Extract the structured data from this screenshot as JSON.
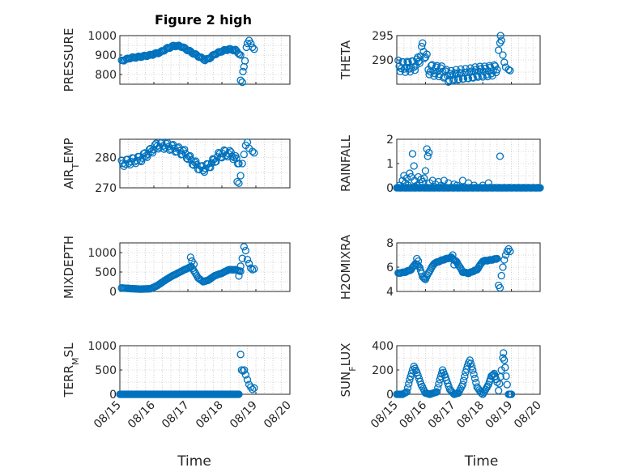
{
  "figure": {
    "title": "Figure 2 high",
    "marker_color": "#0072BD"
  },
  "chart_data": [
    {
      "type": "scatter",
      "id": "pressure",
      "title": "Figure 2 high",
      "ylabel": {
        "text": "PRESSURE"
      },
      "ylim": [
        750,
        1000
      ],
      "yticks": [
        "800",
        "900",
        "1000"
      ],
      "xlim": [
        0,
        5
      ],
      "xticks": [
        "08/15",
        "08/16",
        "08/17",
        "08/18",
        "08/19",
        "08/20"
      ],
      "xlabel": "",
      "grid": true,
      "keyframes": [
        [
          0.05,
          870
        ],
        [
          0.3,
          885
        ],
        [
          0.55,
          890
        ],
        [
          0.9,
          900
        ],
        [
          1.2,
          915
        ],
        [
          1.4,
          935
        ],
        [
          1.6,
          948
        ],
        [
          1.8,
          945
        ],
        [
          2.05,
          920
        ],
        [
          2.3,
          895
        ],
        [
          2.5,
          875
        ],
        [
          2.6,
          880
        ],
        [
          2.8,
          905
        ],
        [
          3.0,
          920
        ],
        [
          3.2,
          930
        ],
        [
          3.4,
          925
        ],
        [
          3.55,
          900
        ]
      ],
      "extra": [
        [
          3.55,
          770
        ],
        [
          3.6,
          760
        ],
        [
          3.62,
          815
        ],
        [
          3.65,
          840
        ],
        [
          3.68,
          870
        ],
        [
          3.72,
          940
        ],
        [
          3.75,
          960
        ],
        [
          3.8,
          975
        ],
        [
          3.85,
          960
        ],
        [
          3.9,
          940
        ],
        [
          3.95,
          930
        ]
      ]
    },
    {
      "type": "scatter",
      "id": "theta",
      "ylabel": {
        "text": "THETA"
      },
      "ylim": [
        285,
        295
      ],
      "yticks": [
        "290",
        "295"
      ],
      "xlim": [
        0,
        5
      ],
      "xticks": [
        "08/15",
        "08/16",
        "08/17",
        "08/18",
        "08/19",
        "08/20"
      ],
      "xlabel": "",
      "grid": true,
      "keyframes": [
        [
          0.05,
          288.8
        ],
        [
          0.3,
          288.6
        ],
        [
          0.5,
          288.7
        ],
        [
          0.7,
          289.2
        ],
        [
          0.8,
          290.5
        ],
        [
          0.9,
          292.5
        ],
        [
          1.0,
          291
        ],
        [
          1.05,
          290
        ],
        [
          1.1,
          288.2
        ],
        [
          1.3,
          287.8
        ],
        [
          1.6,
          287.6
        ],
        [
          1.8,
          286.5
        ],
        [
          2.0,
          286.8
        ],
        [
          2.3,
          287
        ],
        [
          2.6,
          287.2
        ],
        [
          2.8,
          287.5
        ],
        [
          3.1,
          287.6
        ],
        [
          3.3,
          287.8
        ],
        [
          3.5,
          288
        ]
      ],
      "extra": [
        [
          3.55,
          292
        ],
        [
          3.6,
          293.5
        ],
        [
          3.62,
          295
        ],
        [
          3.65,
          294
        ],
        [
          3.7,
          291
        ],
        [
          3.75,
          289.5
        ],
        [
          3.8,
          288.5
        ],
        [
          3.9,
          288
        ],
        [
          3.95,
          287.8
        ]
      ]
    },
    {
      "type": "scatter",
      "id": "air_temp",
      "ylabel": {
        "text": "AIR",
        "sub": "T",
        "rest": "EMP"
      },
      "ylim": [
        270,
        286
      ],
      "yticks": [
        "270",
        "280"
      ],
      "xlim": [
        0,
        5
      ],
      "xticks": [
        "08/15",
        "08/16",
        "08/17",
        "08/18",
        "08/19",
        "08/20"
      ],
      "xlabel": "",
      "grid": true,
      "keyframes": [
        [
          0.05,
          278
        ],
        [
          0.3,
          278.7
        ],
        [
          0.6,
          279.5
        ],
        [
          0.9,
          282
        ],
        [
          1.1,
          284
        ],
        [
          1.4,
          283.8
        ],
        [
          1.6,
          283
        ],
        [
          1.9,
          281.5
        ],
        [
          2.1,
          279
        ],
        [
          2.3,
          277
        ],
        [
          2.45,
          276
        ],
        [
          2.7,
          278
        ],
        [
          2.9,
          280.5
        ],
        [
          3.1,
          281.5
        ],
        [
          3.3,
          281
        ],
        [
          3.5,
          278
        ]
      ],
      "extra": [
        [
          3.45,
          272
        ],
        [
          3.5,
          271.5
        ],
        [
          3.55,
          274
        ],
        [
          3.6,
          278
        ],
        [
          3.65,
          281
        ],
        [
          3.7,
          284
        ],
        [
          3.75,
          285
        ],
        [
          3.8,
          283
        ],
        [
          3.9,
          282
        ],
        [
          3.95,
          281.5
        ]
      ]
    },
    {
      "type": "scatter",
      "id": "rainfall",
      "ylabel": {
        "text": "RAINFALL"
      },
      "ylim": [
        0,
        2
      ],
      "yticks": [
        "0",
        "1",
        "2"
      ],
      "xlim": [
        0,
        5
      ],
      "xticks": [
        "08/15",
        "08/16",
        "08/17",
        "08/18",
        "08/19",
        "08/20"
      ],
      "xlabel": "",
      "grid": true,
      "keyframes": [
        [
          0.0,
          0
        ],
        [
          5.0,
          0
        ]
      ],
      "extra": [
        [
          0.1,
          0.1
        ],
        [
          0.2,
          0.3
        ],
        [
          0.25,
          0.5
        ],
        [
          0.3,
          0.2
        ],
        [
          0.35,
          0.4
        ],
        [
          0.4,
          0.1
        ],
        [
          0.45,
          0.6
        ],
        [
          0.5,
          0.45
        ],
        [
          0.55,
          1.4
        ],
        [
          0.6,
          0.9
        ],
        [
          0.62,
          0.3
        ],
        [
          0.7,
          0.1
        ],
        [
          0.75,
          0.45
        ],
        [
          0.8,
          0.2
        ],
        [
          0.85,
          0.35
        ],
        [
          0.9,
          0.25
        ],
        [
          0.95,
          0.4
        ],
        [
          1.0,
          0.7
        ],
        [
          1.05,
          1.6
        ],
        [
          1.08,
          1.3
        ],
        [
          1.12,
          1.45
        ],
        [
          1.15,
          0.2
        ],
        [
          1.25,
          0.3
        ],
        [
          1.35,
          0.15
        ],
        [
          1.45,
          0.25
        ],
        [
          1.55,
          0.1
        ],
        [
          1.65,
          0.3
        ],
        [
          1.8,
          0.2
        ],
        [
          2.0,
          0.15
        ],
        [
          2.1,
          0.1
        ],
        [
          2.3,
          0.3
        ],
        [
          2.5,
          0.2
        ],
        [
          2.7,
          0.1
        ],
        [
          3.0,
          0.1
        ],
        [
          3.2,
          0.2
        ],
        [
          3.6,
          1.3
        ]
      ]
    },
    {
      "type": "scatter",
      "id": "mixdepth",
      "ylabel": {
        "text": "MIXDEPTH"
      },
      "ylim": [
        0,
        1250
      ],
      "yticks": [
        "0",
        "500",
        "1000"
      ],
      "xlim": [
        0,
        5
      ],
      "xticks": [
        "08/15",
        "08/16",
        "08/17",
        "08/18",
        "08/19",
        "08/20"
      ],
      "xlabel": "",
      "grid": true,
      "keyframes": [
        [
          0.05,
          90
        ],
        [
          0.3,
          75
        ],
        [
          0.6,
          60
        ],
        [
          0.9,
          70
        ],
        [
          1.1,
          150
        ],
        [
          1.3,
          270
        ],
        [
          1.5,
          380
        ],
        [
          1.7,
          470
        ],
        [
          1.9,
          560
        ],
        [
          2.0,
          600
        ],
        [
          2.1,
          640
        ],
        [
          2.2,
          500
        ],
        [
          2.3,
          350
        ],
        [
          2.45,
          250
        ],
        [
          2.6,
          290
        ],
        [
          2.8,
          410
        ],
        [
          3.0,
          470
        ],
        [
          3.2,
          560
        ],
        [
          3.4,
          560
        ],
        [
          3.55,
          520
        ]
      ],
      "extra": [
        [
          2.08,
          880
        ],
        [
          2.12,
          780
        ],
        [
          2.18,
          700
        ],
        [
          3.5,
          400
        ],
        [
          3.55,
          650
        ],
        [
          3.6,
          850
        ],
        [
          3.65,
          1150
        ],
        [
          3.7,
          1050
        ],
        [
          3.75,
          820
        ],
        [
          3.8,
          720
        ],
        [
          3.85,
          600
        ],
        [
          3.9,
          560
        ],
        [
          3.95,
          580
        ]
      ]
    },
    {
      "type": "scatter",
      "id": "h2omixra",
      "ylabel": {
        "text": "H2OMIXRA"
      },
      "ylim": [
        4,
        8
      ],
      "yticks": [
        "4",
        "6",
        "8"
      ],
      "xlim": [
        0,
        5
      ],
      "xticks": [
        "08/15",
        "08/16",
        "08/17",
        "08/18",
        "08/19",
        "08/20"
      ],
      "xlabel": "",
      "grid": true,
      "keyframes": [
        [
          0.05,
          5.5
        ],
        [
          0.3,
          5.6
        ],
        [
          0.5,
          5.8
        ],
        [
          0.65,
          6.3
        ],
        [
          0.8,
          6.0
        ],
        [
          0.9,
          5.2
        ],
        [
          1.0,
          5.0
        ],
        [
          1.1,
          5.5
        ],
        [
          1.3,
          6.3
        ],
        [
          1.6,
          6.6
        ],
        [
          1.9,
          6.8
        ],
        [
          2.1,
          6.4
        ],
        [
          2.3,
          5.6
        ],
        [
          2.5,
          5.5
        ],
        [
          2.8,
          5.8
        ],
        [
          3.0,
          6.5
        ],
        [
          3.3,
          6.6
        ],
        [
          3.5,
          6.7
        ]
      ],
      "extra": [
        [
          0.7,
          6.7
        ],
        [
          0.75,
          6.5
        ],
        [
          1.95,
          7.0
        ],
        [
          2.0,
          6.2
        ],
        [
          3.55,
          4.5
        ],
        [
          3.6,
          4.3
        ],
        [
          3.65,
          5.3
        ],
        [
          3.7,
          6.0
        ],
        [
          3.75,
          6.6
        ],
        [
          3.8,
          7.0
        ],
        [
          3.85,
          7.3
        ],
        [
          3.9,
          7.5
        ],
        [
          3.95,
          7.3
        ]
      ]
    },
    {
      "type": "scatter",
      "id": "terr_msl",
      "ylabel": {
        "text": "TERR",
        "sub": "M",
        "rest": "SL"
      },
      "ylim": [
        0,
        1000
      ],
      "yticks": [
        "0",
        "500",
        "1000"
      ],
      "xlim": [
        0,
        5
      ],
      "xticks": [
        "08/15",
        "08/16",
        "08/17",
        "08/18",
        "08/19",
        "08/20"
      ],
      "xlabel": "Time",
      "grid": true,
      "keyframes": [
        [
          0.0,
          0
        ],
        [
          3.5,
          0
        ]
      ],
      "extra": [
        [
          3.55,
          820
        ],
        [
          3.58,
          500
        ],
        [
          3.62,
          480
        ],
        [
          3.66,
          500
        ],
        [
          3.7,
          400
        ],
        [
          3.75,
          300
        ],
        [
          3.8,
          200
        ],
        [
          3.85,
          150
        ],
        [
          3.9,
          100
        ],
        [
          3.95,
          130
        ]
      ]
    },
    {
      "type": "scatter",
      "id": "sun_flux",
      "ylabel": {
        "text": "SUN",
        "sub": "F",
        "rest": "LUX"
      },
      "ylim": [
        0,
        400
      ],
      "yticks": [
        "0",
        "200",
        "400"
      ],
      "xlim": [
        0,
        5
      ],
      "xticks": [
        "08/15",
        "08/16",
        "08/17",
        "08/18",
        "08/19",
        "08/20"
      ],
      "xlabel": "Time",
      "grid": true,
      "keyframes": [
        [
          0.0,
          0
        ],
        [
          0.2,
          0
        ],
        [
          0.35,
          20
        ],
        [
          0.45,
          120
        ],
        [
          0.55,
          200
        ],
        [
          0.6,
          230
        ],
        [
          0.7,
          180
        ],
        [
          0.85,
          80
        ],
        [
          1.0,
          10
        ],
        [
          1.15,
          0
        ],
        [
          1.4,
          20
        ],
        [
          1.5,
          120
        ],
        [
          1.6,
          200
        ],
        [
          1.7,
          140
        ],
        [
          1.85,
          40
        ],
        [
          2.0,
          0
        ],
        [
          2.15,
          10
        ],
        [
          2.3,
          80
        ],
        [
          2.4,
          180
        ],
        [
          2.5,
          260
        ],
        [
          2.55,
          280
        ],
        [
          2.65,
          200
        ],
        [
          2.8,
          60
        ],
        [
          2.95,
          10
        ],
        [
          3.0,
          0
        ],
        [
          3.2,
          80
        ],
        [
          3.3,
          150
        ],
        [
          3.4,
          170
        ],
        [
          3.5,
          100
        ],
        [
          3.55,
          30
        ],
        [
          3.65,
          200
        ],
        [
          3.7,
          300
        ],
        [
          3.72,
          340
        ],
        [
          3.78,
          220
        ],
        [
          3.85,
          80
        ],
        [
          3.9,
          0
        ],
        [
          4.0,
          0
        ]
      ],
      "extra": []
    }
  ]
}
